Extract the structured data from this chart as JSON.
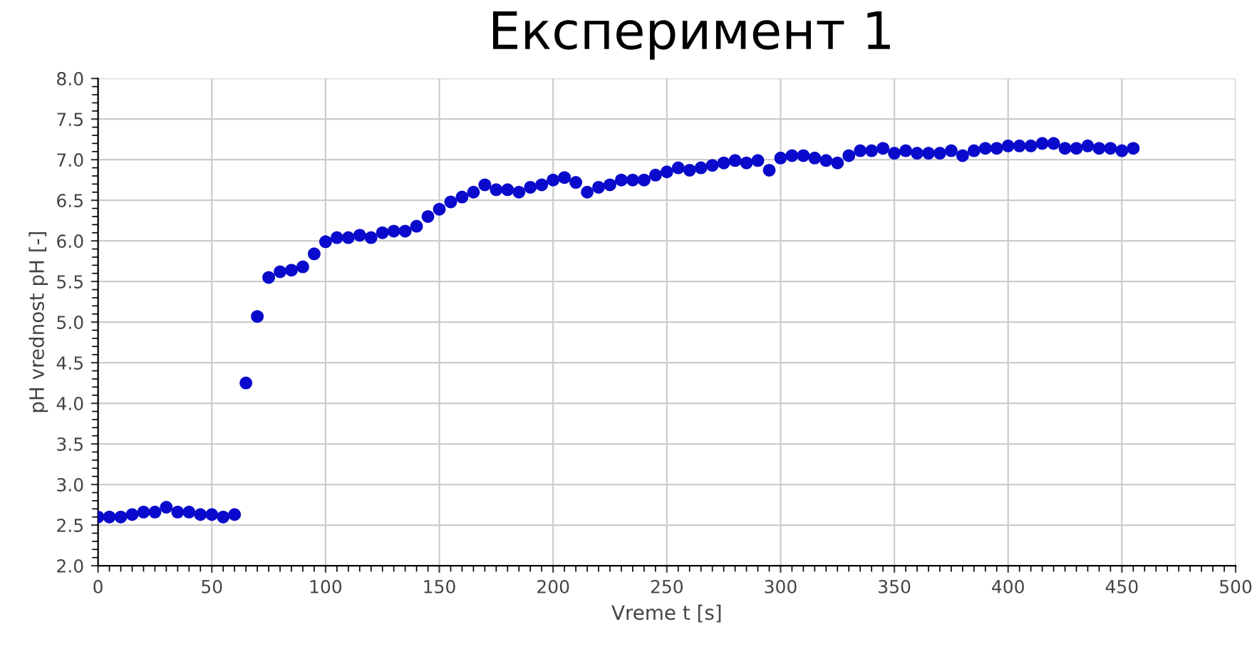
{
  "chart_data": {
    "type": "scatter",
    "title": "Експеримент 1",
    "xlabel": "Vreme t [s]",
    "ylabel": "pH vrednost pH [-]",
    "x": [
      0,
      5,
      10,
      15,
      20,
      25,
      30,
      35,
      40,
      45,
      50,
      55,
      60,
      65,
      70,
      75,
      80,
      85,
      90,
      95,
      100,
      105,
      110,
      115,
      120,
      125,
      130,
      135,
      140,
      145,
      150,
      155,
      160,
      165,
      170,
      175,
      180,
      185,
      190,
      195,
      200,
      205,
      210,
      215,
      220,
      225,
      230,
      235,
      240,
      245,
      250,
      255,
      260,
      265,
      270,
      275,
      280,
      285,
      290,
      295,
      300,
      305,
      310,
      315,
      320,
      325,
      330,
      335,
      340,
      345,
      350,
      355,
      360,
      365,
      370,
      375,
      380,
      385,
      390,
      395,
      400,
      405,
      410,
      415,
      420,
      425,
      430,
      435,
      440,
      445,
      450,
      455
    ],
    "series": [
      {
        "color": "#0a0acc",
        "values": [
          2.6,
          2.6,
          2.6,
          2.63,
          2.66,
          2.66,
          2.72,
          2.66,
          2.66,
          2.63,
          2.63,
          2.6,
          2.63,
          4.25,
          5.07,
          5.55,
          5.62,
          5.64,
          5.68,
          5.84,
          5.99,
          6.04,
          6.04,
          6.07,
          6.04,
          6.1,
          6.12,
          6.12,
          6.18,
          6.3,
          6.39,
          6.48,
          6.54,
          6.6,
          6.69,
          6.63,
          6.63,
          6.6,
          6.66,
          6.69,
          6.75,
          6.78,
          6.72,
          6.6,
          6.66,
          6.69,
          6.75,
          6.75,
          6.75,
          6.81,
          6.85,
          6.9,
          6.87,
          6.9,
          6.93,
          6.96,
          6.99,
          6.96,
          6.99,
          6.87,
          7.02,
          7.05,
          7.05,
          7.02,
          6.99,
          6.96,
          7.05,
          7.11,
          7.11,
          7.14,
          7.08,
          7.11,
          7.08,
          7.08,
          7.08,
          7.11,
          7.05,
          7.11,
          7.14,
          7.14,
          7.17,
          7.17,
          7.17,
          7.2,
          7.2,
          7.14,
          7.14,
          7.17,
          7.14,
          7.14,
          7.11,
          7.14
        ]
      }
    ],
    "xlim": [
      0,
      500
    ],
    "xticks": [
      0,
      50,
      100,
      150,
      200,
      250,
      300,
      350,
      400,
      450,
      500
    ],
    "ylim": [
      2.0,
      8.0
    ],
    "yticks": [
      {
        "value": 2.0,
        "label": "2.0"
      },
      {
        "value": 2.5,
        "label": "2.5"
      },
      {
        "value": 3.0,
        "label": "3.0"
      },
      {
        "value": 3.5,
        "label": "3.5"
      },
      {
        "value": 4.0,
        "label": "4.0"
      },
      {
        "value": 4.5,
        "label": "4.5"
      },
      {
        "value": 5.0,
        "label": "5.0"
      },
      {
        "value": 5.5,
        "label": "5.5"
      },
      {
        "value": 6.0,
        "label": "6.0"
      },
      {
        "value": 6.5,
        "label": "6.5"
      },
      {
        "value": 7.0,
        "label": "7.0"
      },
      {
        "value": 7.5,
        "label": "7.5"
      },
      {
        "value": 8.0,
        "label": "8.0"
      }
    ],
    "grid": true,
    "marker": "circle",
    "legend": false
  }
}
